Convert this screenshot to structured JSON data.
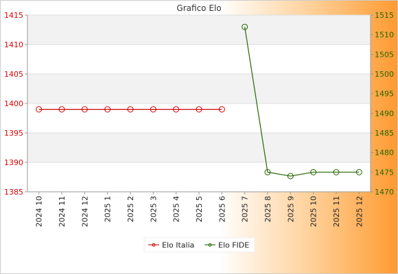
{
  "chart_data": {
    "type": "line",
    "title": "Grafico Elo",
    "categories": [
      "2024 10",
      "2024 11",
      "2024 12",
      "2025 1",
      "2025 2",
      "2025 3",
      "2025 4",
      "2025 5",
      "2025 6",
      "2025 7",
      "2025 8",
      "2025 9",
      "2025 10",
      "2025 11",
      "2025 12"
    ],
    "y_left": {
      "min": 1385,
      "max": 1415,
      "ticks": [
        1385,
        1390,
        1395,
        1400,
        1405,
        1410,
        1415
      ],
      "color": "#dd0000"
    },
    "y_right": {
      "min": 1470,
      "max": 1515,
      "ticks": [
        1470,
        1475,
        1480,
        1485,
        1490,
        1495,
        1500,
        1505,
        1510,
        1515
      ],
      "color": "#226600"
    },
    "grid": true,
    "legend_position": "bottom",
    "series": [
      {
        "name": "Elo Italia",
        "axis": "left",
        "color": "#cc0000",
        "values": [
          1399,
          1399,
          1399,
          1399,
          1399,
          1399,
          1399,
          1399,
          1399,
          null,
          null,
          null,
          null,
          null,
          null
        ]
      },
      {
        "name": "Elo FIDE",
        "axis": "right",
        "color": "#226600",
        "values": [
          null,
          null,
          null,
          null,
          null,
          null,
          null,
          null,
          null,
          1512,
          1475,
          1474,
          1475,
          1475,
          1475
        ]
      }
    ]
  }
}
